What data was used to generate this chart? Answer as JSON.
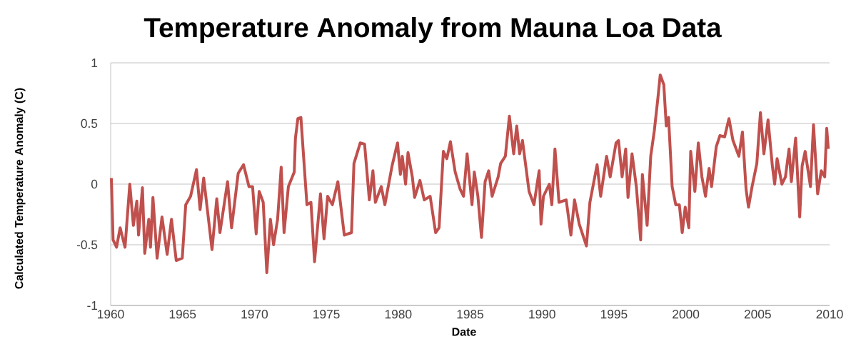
{
  "chart_data": {
    "type": "line",
    "title": "Temperature Anomaly from Mauna Loa Data",
    "xlabel": "Date",
    "ylabel": "Calculated Temperature Anomaly (C)",
    "color": "#c0504d",
    "marker": "none",
    "grid": "y",
    "xlim": [
      1960,
      2010
    ],
    "xticks": [
      1960,
      1965,
      1970,
      1975,
      1980,
      1985,
      1990,
      1995,
      2000,
      2005,
      2010
    ],
    "ylim": [
      -1,
      1
    ],
    "yticks": [
      -1,
      -0.5,
      0,
      0.5,
      1
    ],
    "x": [
      1960.05,
      1960.17,
      1960.41,
      1960.66,
      1961.0,
      1961.33,
      1961.58,
      1961.82,
      1961.94,
      1962.21,
      1962.37,
      1962.65,
      1962.77,
      1962.94,
      1963.23,
      1963.57,
      1963.93,
      1964.23,
      1964.56,
      1964.98,
      1965.22,
      1965.56,
      1965.97,
      1966.22,
      1966.47,
      1967.05,
      1967.38,
      1967.6,
      1968.13,
      1968.41,
      1968.87,
      1969.24,
      1969.62,
      1969.87,
      1970.12,
      1970.33,
      1970.61,
      1970.86,
      1971.11,
      1971.33,
      1971.61,
      1971.86,
      1972.06,
      1972.36,
      1972.77,
      1972.85,
      1973.02,
      1973.23,
      1973.65,
      1973.93,
      1974.18,
      1974.59,
      1974.84,
      1975.09,
      1975.42,
      1975.8,
      1976.25,
      1976.75,
      1976.92,
      1977.36,
      1977.66,
      1977.99,
      1978.24,
      1978.41,
      1978.82,
      1979.07,
      1979.57,
      1979.95,
      1980.15,
      1980.28,
      1980.51,
      1980.68,
      1980.98,
      1981.14,
      1981.51,
      1981.81,
      1982.22,
      1982.6,
      1982.84,
      1983.14,
      1983.38,
      1983.63,
      1983.96,
      1984.3,
      1984.54,
      1984.79,
      1985.13,
      1985.29,
      1985.54,
      1985.79,
      1986.04,
      1986.29,
      1986.53,
      1986.95,
      1987.12,
      1987.45,
      1987.73,
      1988.03,
      1988.24,
      1988.44,
      1988.64,
      1989.1,
      1989.44,
      1989.8,
      1989.93,
      1990.1,
      1990.51,
      1990.68,
      1990.9,
      1991.18,
      1991.68,
      1992.01,
      1992.26,
      1992.59,
      1993.09,
      1993.33,
      1993.83,
      1994.08,
      1994.49,
      1994.74,
      1995.15,
      1995.32,
      1995.57,
      1995.82,
      1995.98,
      1996.26,
      1996.56,
      1996.86,
      1996.98,
      1997.31,
      1997.56,
      1997.81,
      1998.06,
      1998.22,
      1998.47,
      1998.64,
      1998.8,
      1999.05,
      1999.3,
      1999.55,
      1999.75,
      1999.96,
      2000.21,
      2000.34,
      2000.63,
      2000.87,
      2001.12,
      2001.37,
      2001.62,
      2001.79,
      2002.12,
      2002.37,
      2002.7,
      2003.0,
      2003.28,
      2003.69,
      2003.94,
      2004.19,
      2004.36,
      2004.61,
      2004.94,
      2005.19,
      2005.43,
      2005.72,
      2006.02,
      2006.18,
      2006.35,
      2006.68,
      2006.93,
      2007.18,
      2007.34,
      2007.64,
      2007.92,
      2008.09,
      2008.3,
      2008.67,
      2008.88,
      2009.17,
      2009.42,
      2009.66,
      2009.8,
      2009.91
    ],
    "values": [
      0.05,
      -0.46,
      -0.52,
      -0.36,
      -0.52,
      0.0,
      -0.34,
      -0.14,
      -0.42,
      -0.03,
      -0.57,
      -0.29,
      -0.52,
      -0.11,
      -0.61,
      -0.27,
      -0.58,
      -0.29,
      -0.63,
      -0.61,
      -0.17,
      -0.1,
      0.12,
      -0.21,
      0.05,
      -0.54,
      -0.12,
      -0.4,
      0.02,
      -0.36,
      0.09,
      0.16,
      -0.02,
      -0.02,
      -0.41,
      -0.06,
      -0.15,
      -0.73,
      -0.29,
      -0.5,
      -0.29,
      0.14,
      -0.4,
      -0.02,
      0.1,
      0.38,
      0.54,
      0.55,
      -0.17,
      -0.15,
      -0.64,
      -0.08,
      -0.45,
      -0.1,
      -0.17,
      0.02,
      -0.42,
      -0.4,
      0.17,
      0.34,
      0.33,
      -0.13,
      0.11,
      -0.15,
      -0.02,
      -0.17,
      0.15,
      0.34,
      0.08,
      0.23,
      0.0,
      0.26,
      0.06,
      -0.11,
      0.03,
      -0.13,
      -0.1,
      -0.4,
      -0.36,
      0.27,
      0.21,
      0.35,
      0.1,
      -0.04,
      -0.1,
      0.25,
      -0.17,
      0.1,
      -0.1,
      -0.44,
      0.02,
      0.11,
      -0.1,
      0.06,
      0.17,
      0.23,
      0.56,
      0.25,
      0.48,
      0.25,
      0.36,
      -0.06,
      -0.17,
      0.11,
      -0.33,
      -0.1,
      0.0,
      -0.17,
      0.29,
      -0.15,
      -0.13,
      -0.42,
      -0.13,
      -0.33,
      -0.51,
      -0.15,
      0.16,
      -0.1,
      0.23,
      0.06,
      0.34,
      0.36,
      0.06,
      0.29,
      -0.11,
      0.25,
      -0.02,
      -0.46,
      0.08,
      -0.34,
      0.23,
      0.44,
      0.71,
      0.9,
      0.82,
      0.48,
      0.55,
      -0.02,
      -0.17,
      -0.17,
      -0.4,
      -0.19,
      -0.36,
      0.27,
      -0.06,
      0.34,
      0.06,
      -0.1,
      0.13,
      -0.02,
      0.31,
      0.4,
      0.39,
      0.54,
      0.36,
      0.23,
      0.43,
      -0.04,
      -0.19,
      -0.02,
      0.17,
      0.59,
      0.25,
      0.53,
      0.15,
      0.0,
      0.21,
      0.0,
      0.06,
      0.29,
      0.02,
      0.38,
      -0.27,
      0.15,
      0.27,
      -0.02,
      0.49,
      -0.08,
      0.11,
      0.06,
      0.46,
      0.29
    ]
  }
}
